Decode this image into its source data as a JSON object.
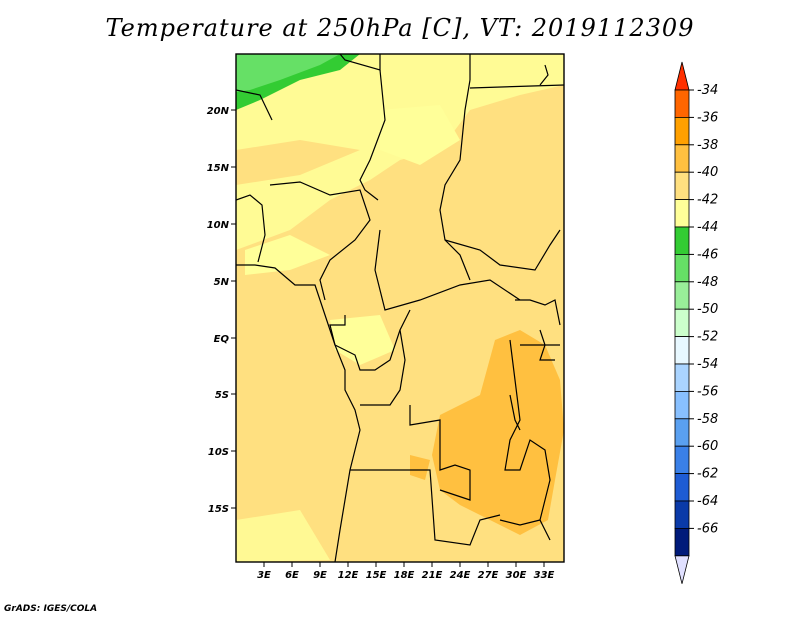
{
  "title": "Temperature at 250hPa [C], VT: 2019112309",
  "credit": "GrADS: IGES/COLA",
  "lat_labels": [
    "20N",
    "15N",
    "10N",
    "5N",
    "EQ",
    "5S",
    "10S",
    "15S"
  ],
  "lon_labels": [
    "3E",
    "6E",
    "9E",
    "12E",
    "15E",
    "18E",
    "21E",
    "24E",
    "27E",
    "30E",
    "33E"
  ],
  "colorbar": {
    "labels": [
      "-34",
      "-36",
      "-38",
      "-40",
      "-42",
      "-44",
      "-46",
      "-48",
      "-50",
      "-52",
      "-54",
      "-56",
      "-58",
      "-60",
      "-62",
      "-64",
      "-66"
    ],
    "colors": [
      "#ff3000",
      "#ff6600",
      "#ffa000",
      "#ffc040",
      "#ffe080",
      "#ffff99",
      "#33cc33",
      "#66e066",
      "#99ee99",
      "#ccffcc",
      "#e8f8ff",
      "#aad4ff",
      "#88c0ff",
      "#5aa0f0",
      "#3a80e8",
      "#1e5cd4",
      "#0a3aa8",
      "#001a7a",
      "#e0e0ff"
    ]
  }
}
